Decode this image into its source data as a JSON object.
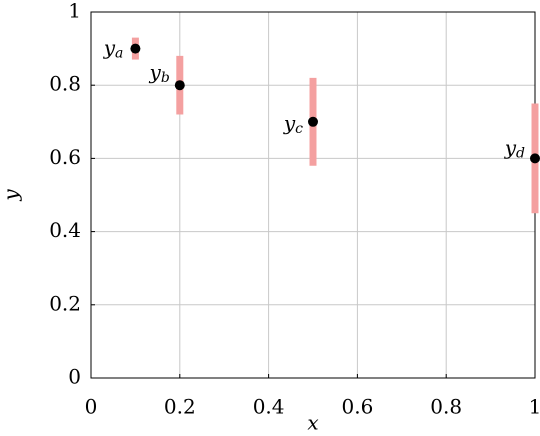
{
  "chart_data": {
    "type": "scatter",
    "xlabel": "x",
    "ylabel": "y",
    "series": [
      {
        "x": [
          0.1,
          0.2,
          0.5,
          1
        ],
        "y": [
          0.9,
          0.8,
          0.7,
          0.6
        ],
        "yerr": [
          0.03,
          0.08,
          0.12,
          0.15
        ],
        "color": "#000000",
        "error_color": "#f4a0a0",
        "point_labels": [
          [
            "y",
            "a"
          ],
          [
            "y",
            "b"
          ],
          [
            "y",
            "c"
          ],
          [
            "y",
            "d"
          ]
        ]
      }
    ],
    "xlim": [
      0,
      1
    ],
    "ylim": [
      0,
      1
    ],
    "xticks": [
      0,
      0.2,
      0.4,
      0.6,
      0.8,
      1
    ],
    "yticks": [
      0,
      0.2,
      0.4,
      0.6,
      0.8,
      1
    ],
    "grid": true
  }
}
